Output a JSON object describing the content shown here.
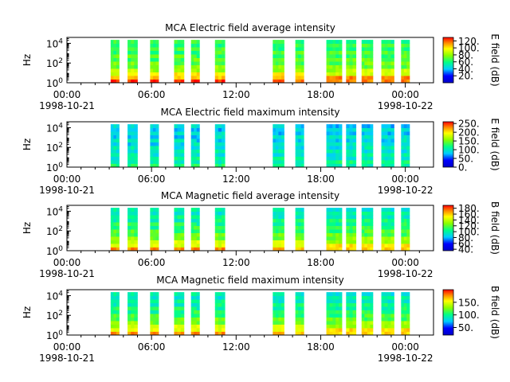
{
  "chart_data": [
    {
      "type": "heatmap",
      "title": "MCA  Electric field average intensity",
      "ylabel": "Hz",
      "yticks": [
        "10^0",
        "10^2",
        "10^4"
      ],
      "xticks": [
        "00:00",
        "06:00",
        "12:00",
        "18:00",
        "00:00"
      ],
      "date_start": "1998-10-21",
      "date_end": "1998-10-22",
      "xlim_hours": [
        0,
        26
      ],
      "ylim_log10_hz": [
        0,
        4.6
      ],
      "colorbar": {
        "label": "E field (dB)",
        "ticks": [
          "20.",
          "40.",
          "60.",
          "80.",
          "100.",
          "120."
        ],
        "range": [
          0,
          130
        ]
      },
      "segments_hours": [
        [
          3.1,
          3.7
        ],
        [
          4.3,
          5.0
        ],
        [
          5.9,
          6.5
        ],
        [
          7.6,
          8.3
        ],
        [
          8.8,
          9.4
        ],
        [
          10.5,
          11.2
        ],
        [
          14.6,
          15.4
        ],
        [
          16.2,
          16.8
        ],
        [
          18.4,
          19.5
        ],
        [
          19.8,
          20.5
        ],
        [
          20.9,
          21.7
        ],
        [
          22.3,
          23.2
        ],
        [
          23.7,
          24.3
        ]
      ],
      "intensity_profile": [
        120,
        110,
        95,
        85,
        75,
        72,
        70,
        68,
        66,
        65,
        64,
        62
      ]
    },
    {
      "type": "heatmap",
      "title": "MCA  Electric field maximum intensity",
      "ylabel": "Hz",
      "yticks": [
        "10^0",
        "10^2",
        "10^4"
      ],
      "xticks": [
        "00:00",
        "06:00",
        "12:00",
        "18:00",
        "00:00"
      ],
      "date_start": "1998-10-21",
      "date_end": "1998-10-22",
      "xlim_hours": [
        0,
        26
      ],
      "ylim_log10_hz": [
        0,
        4.6
      ],
      "colorbar": {
        "label": "E field (dB)",
        "ticks": [
          "0.",
          "50.",
          "100.",
          "150.",
          "200.",
          "250."
        ],
        "range": [
          0,
          260
        ]
      },
      "segments_hours": [
        [
          3.1,
          3.7
        ],
        [
          4.3,
          5.0
        ],
        [
          5.9,
          6.5
        ],
        [
          7.6,
          8.3
        ],
        [
          8.8,
          9.4
        ],
        [
          10.5,
          11.2
        ],
        [
          14.6,
          15.4
        ],
        [
          16.2,
          16.8
        ],
        [
          18.4,
          19.5
        ],
        [
          19.8,
          20.5
        ],
        [
          20.9,
          21.7
        ],
        [
          22.3,
          23.2
        ],
        [
          23.7,
          24.3
        ]
      ],
      "intensity_profile": [
        115,
        110,
        105,
        100,
        98,
        95,
        92,
        90,
        88,
        86,
        84,
        82
      ]
    },
    {
      "type": "heatmap",
      "title": "MCA  Magnetic field average intensity",
      "ylabel": "Hz",
      "yticks": [
        "10^0",
        "10^2",
        "10^4"
      ],
      "xticks": [
        "00:00",
        "06:00",
        "12:00",
        "18:00",
        "00:00"
      ],
      "date_start": "1998-10-21",
      "date_end": "1998-10-22",
      "xlim_hours": [
        0,
        26
      ],
      "ylim_log10_hz": [
        0,
        4.6
      ],
      "colorbar": {
        "label": "B field (dB)",
        "ticks": [
          "40.",
          "60.",
          "80.",
          "100.",
          "120.",
          "140.",
          "160.",
          "180."
        ],
        "range": [
          35,
          190
        ]
      },
      "segments_hours": [
        [
          3.1,
          3.7
        ],
        [
          4.3,
          5.0
        ],
        [
          5.9,
          6.5
        ],
        [
          7.6,
          8.3
        ],
        [
          8.8,
          9.4
        ],
        [
          10.5,
          11.2
        ],
        [
          14.6,
          15.4
        ],
        [
          16.2,
          16.8
        ],
        [
          18.4,
          19.5
        ],
        [
          19.8,
          20.5
        ],
        [
          20.9,
          21.7
        ],
        [
          22.3,
          23.2
        ],
        [
          23.7,
          24.3
        ]
      ],
      "intensity_profile": [
        165,
        150,
        138,
        128,
        120,
        114,
        110,
        106,
        102,
        99,
        96,
        94
      ]
    },
    {
      "type": "heatmap",
      "title": "MCA  Magnetic field maximum intensity",
      "ylabel": "Hz",
      "yticks": [
        "10^0",
        "10^2",
        "10^4"
      ],
      "xticks": [
        "00:00",
        "06:00",
        "12:00",
        "18:00",
        "00:00"
      ],
      "date_start": "1998-10-21",
      "date_end": "1998-10-22",
      "xlim_hours": [
        0,
        26
      ],
      "ylim_log10_hz": [
        0,
        4.6
      ],
      "colorbar": {
        "label": "B field (dB)",
        "ticks": [
          "50.",
          "100.",
          "150."
        ],
        "range": [
          20,
          200
        ]
      },
      "segments_hours": [
        [
          3.1,
          3.7
        ],
        [
          4.3,
          5.0
        ],
        [
          5.9,
          6.5
        ],
        [
          7.6,
          8.3
        ],
        [
          8.8,
          9.4
        ],
        [
          10.5,
          11.2
        ],
        [
          14.6,
          15.4
        ],
        [
          16.2,
          16.8
        ],
        [
          18.4,
          19.5
        ],
        [
          19.8,
          20.5
        ],
        [
          20.9,
          21.7
        ],
        [
          22.3,
          23.2
        ],
        [
          23.7,
          24.3
        ]
      ],
      "intensity_profile": [
        170,
        155,
        140,
        128,
        118,
        110,
        104,
        100,
        96,
        93,
        90,
        88
      ]
    }
  ]
}
